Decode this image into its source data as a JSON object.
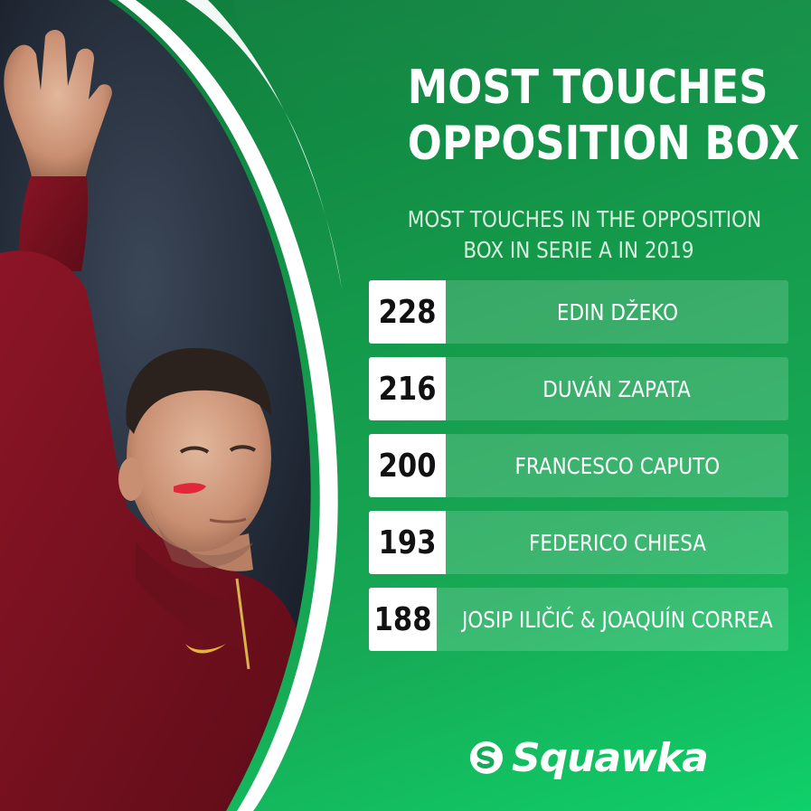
{
  "title_lines": [
    "MOST TOUCHES",
    "OPPOSITION BOX"
  ],
  "subtitle_lines": [
    "MOST TOUCHES IN THE OPPOSITION",
    "BOX IN SERIE A IN 2019"
  ],
  "rows": [
    {
      "value": "228",
      "name": "EDIN DŽEKO"
    },
    {
      "value": "216",
      "name": "DUVÁN ZAPATA"
    },
    {
      "value": "200",
      "name": "FRANCESCO CAPUTO"
    },
    {
      "value": "193",
      "name": "FEDERICO CHIESA"
    },
    {
      "value": "188",
      "name": "JOSIP ILIČIĆ & JOAQUÍN CORREA"
    }
  ],
  "brand": {
    "name": "Squawka",
    "logo_icon": "squawka-logo-icon"
  },
  "colors": {
    "green_dark": "#0f7a3c",
    "green_light": "#0fd06a",
    "shirt": "#7a1020",
    "white": "#ffffff"
  }
}
